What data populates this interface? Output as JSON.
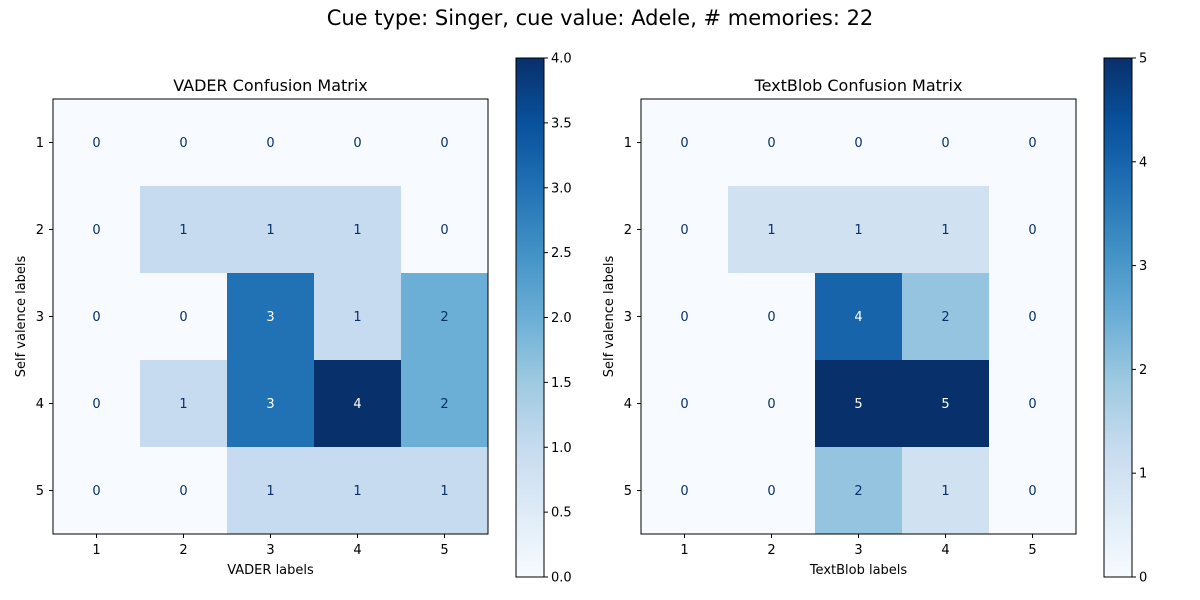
{
  "figure": {
    "suptitle": "Cue type: Singer, cue value: Adele, # memories: 22"
  },
  "chart_data": [
    {
      "type": "heatmap",
      "title": "VADER Confusion Matrix",
      "xlabel": "VADER labels",
      "ylabel": "Self valence labels",
      "x_categories": [
        "1",
        "2",
        "3",
        "4",
        "5"
      ],
      "y_categories": [
        "1",
        "2",
        "3",
        "4",
        "5"
      ],
      "matrix": [
        [
          0,
          0,
          0,
          0,
          0
        ],
        [
          0,
          1,
          1,
          1,
          0
        ],
        [
          0,
          0,
          3,
          1,
          2
        ],
        [
          0,
          1,
          3,
          4,
          2
        ],
        [
          0,
          0,
          1,
          1,
          1
        ]
      ],
      "colormap": "Blues",
      "vmin": 0,
      "vmax": 4,
      "colorbar_ticks": [
        "0.0",
        "0.5",
        "1.0",
        "1.5",
        "2.0",
        "2.5",
        "3.0",
        "3.5",
        "4.0"
      ]
    },
    {
      "type": "heatmap",
      "title": "TextBlob Confusion Matrix",
      "xlabel": "TextBlob labels",
      "ylabel": "Self valence labels",
      "x_categories": [
        "1",
        "2",
        "3",
        "4",
        "5"
      ],
      "y_categories": [
        "1",
        "2",
        "3",
        "4",
        "5"
      ],
      "matrix": [
        [
          0,
          0,
          0,
          0,
          0
        ],
        [
          0,
          1,
          1,
          1,
          0
        ],
        [
          0,
          0,
          4,
          2,
          0
        ],
        [
          0,
          0,
          5,
          5,
          0
        ],
        [
          0,
          0,
          2,
          1,
          0
        ]
      ],
      "colormap": "Blues",
      "vmin": 0,
      "vmax": 5,
      "colorbar_ticks": [
        "0",
        "1",
        "2",
        "3",
        "4",
        "5"
      ]
    }
  ]
}
